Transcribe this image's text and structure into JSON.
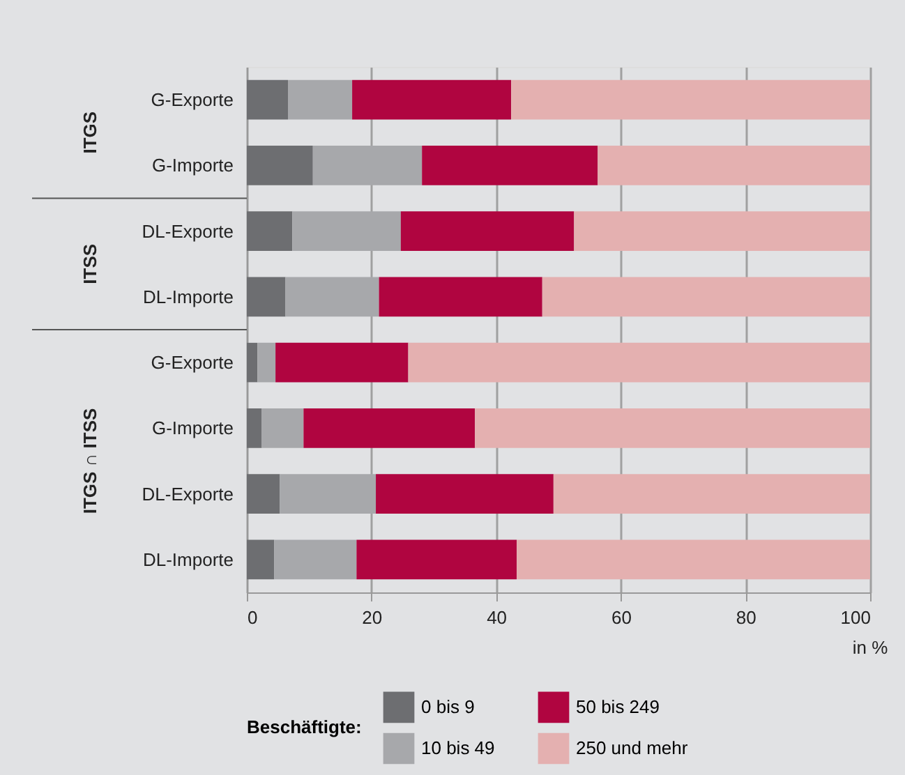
{
  "chart_data": {
    "type": "bar",
    "orientation": "horizontal",
    "stacked": true,
    "categories": [
      "G-Exporte",
      "G-Importe",
      "DL-Exporte",
      "DL-Importe",
      "G-Exporte",
      "G-Importe",
      "DL-Exporte",
      "DL-Importe"
    ],
    "series": [
      {
        "name": "0 bis 9",
        "color": "#6d6e71",
        "values": [
          6.6,
          10.6,
          7.3,
          6.2,
          1.7,
          2.4,
          5.3,
          4.4
        ]
      },
      {
        "name": "10 bis 49",
        "color": "#a7a8ab",
        "values": [
          10.3,
          17.5,
          17.4,
          15.0,
          2.9,
          6.7,
          15.4,
          13.2
        ]
      },
      {
        "name": "50 bis 249",
        "color": "#b00540",
        "values": [
          25.5,
          28.2,
          27.8,
          26.2,
          21.3,
          27.5,
          28.5,
          25.7
        ]
      },
      {
        "name": "250 und mehr",
        "color": "#e4b0b0",
        "values": [
          57.6,
          43.7,
          47.5,
          52.6,
          74.1,
          63.4,
          50.8,
          56.7
        ]
      }
    ],
    "xlim": [
      0,
      100
    ],
    "xticks": [
      0,
      20,
      40,
      60,
      80,
      100
    ],
    "xlabel": "in %",
    "legend_title": "Beschäftigte:",
    "legend": "bottom",
    "grid": "x",
    "annotations": [
      "ITGS",
      "ITSS",
      "ITGS ∩ ITSS"
    ]
  }
}
